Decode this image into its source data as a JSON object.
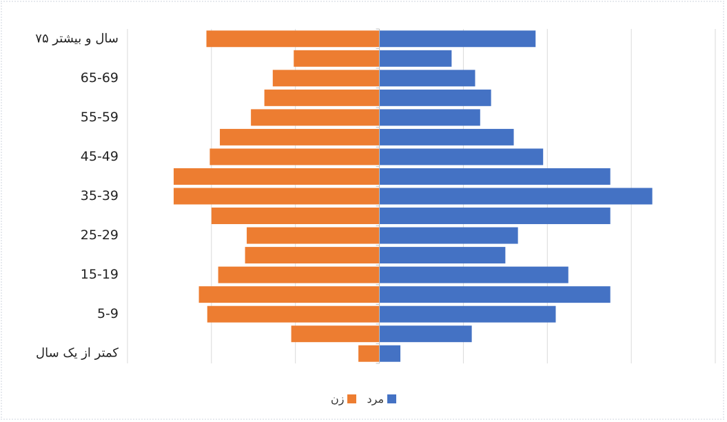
{
  "chart_data": {
    "type": "bar",
    "orientation": "horizontal",
    "subtype": "population-pyramid",
    "title": "",
    "xlabel": "",
    "ylabel": "",
    "categories": [
      "کمتر از یک سال",
      "",
      "5-9",
      "",
      "15-19",
      "",
      "25-29",
      "",
      "35-39",
      "",
      "45-49",
      "",
      "55-59",
      "",
      "65-69",
      "",
      "۷۵ سال و بیشتر"
    ],
    "series": [
      {
        "name": "مرد",
        "color": "#4472c4",
        "values": [
          2.5,
          11,
          21,
          27.5,
          22.5,
          15,
          16.5,
          27.5,
          32.5,
          27.5,
          19.5,
          16,
          12,
          13.3,
          11.4,
          8.6,
          18.6
        ]
      },
      {
        "name": "زن",
        "color": "#ed7d31",
        "values": [
          -2.5,
          -10.5,
          -20.5,
          -21.5,
          -19.2,
          -16,
          -15.8,
          -20,
          -24.5,
          -24.5,
          -20.2,
          -19,
          -15.3,
          -13.7,
          -12.7,
          -10.2,
          -20.6
        ]
      }
    ],
    "xlim": [
      -30,
      40
    ],
    "grid": true,
    "legend": "bottom"
  },
  "legend": {
    "male": "مرد",
    "female": "زن"
  }
}
